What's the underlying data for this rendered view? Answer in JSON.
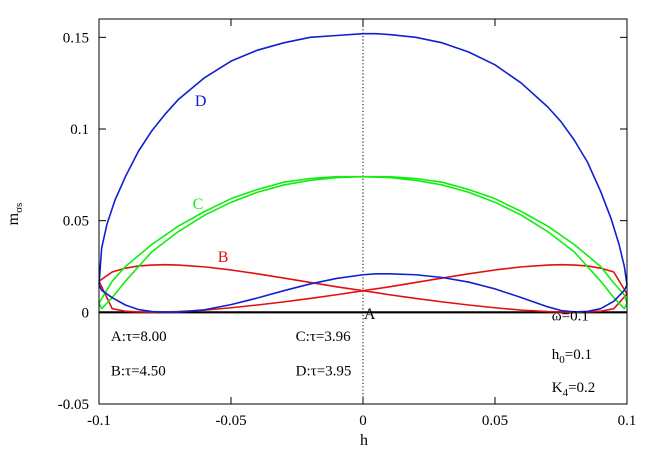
{
  "chart_data": {
    "type": "line",
    "xlabel": "h",
    "ylabel": "m",
    "ylabel_sub": "σs",
    "xlim": [
      -0.1,
      0.1
    ],
    "ylim": [
      -0.05,
      0.16
    ],
    "x_ticks": [
      -0.1,
      -0.05,
      0,
      0.05,
      0.1
    ],
    "x_tick_labels": [
      "-0.1",
      "-0.05",
      "0",
      "0.05",
      "0.1"
    ],
    "y_ticks": [
      -0.05,
      0,
      0.05,
      0.1,
      0.15
    ],
    "y_tick_labels": [
      "-0.05",
      "0",
      "0.05",
      "0.1",
      "0.15"
    ],
    "reference_line": {
      "x": 0,
      "style": "dotted"
    },
    "grid": false,
    "colors": {
      "A": "#000000",
      "B": "#e01010",
      "C": "#10ee10",
      "D": "#1020d0"
    },
    "series": [
      {
        "name": "A",
        "label": "A:τ=8.00",
        "color": "#000000",
        "x": [
          -0.1,
          -0.05,
          0,
          0.05,
          0.1
        ],
        "y": [
          0,
          0,
          0,
          0,
          0
        ]
      },
      {
        "name": "B",
        "label": "B:τ=4.50",
        "color": "#e01010",
        "x": [
          -0.1,
          -0.095,
          -0.09,
          -0.085,
          -0.08,
          -0.075,
          -0.07,
          -0.06,
          -0.05,
          -0.04,
          -0.03,
          -0.02,
          -0.01,
          0,
          0.01,
          0.02,
          0.03,
          0.04,
          0.05,
          0.06,
          0.07,
          0.075,
          0.08,
          0.085,
          0.09,
          0.095,
          0.1,
          0.095,
          0.09,
          0.085,
          0.08,
          0.075,
          0.07,
          0.06,
          0.05,
          0.04,
          0.03,
          0.02,
          0.01,
          0,
          -0.01,
          -0.02,
          -0.03,
          -0.04,
          -0.05,
          -0.06,
          -0.07,
          -0.075,
          -0.08,
          -0.085,
          -0.09,
          -0.095,
          -0.1
        ],
        "y": [
          0.017,
          0.022,
          0.0241,
          0.0253,
          0.0258,
          0.026,
          0.0258,
          0.0248,
          0.0231,
          0.021,
          0.0187,
          0.0163,
          0.0139,
          0.0118,
          0.0096,
          0.0076,
          0.0057,
          0.004,
          0.0025,
          0.0012,
          0.0004,
          0.0002,
          0.0001,
          0.0002,
          0.0006,
          0.002,
          0.01,
          0.022,
          0.0241,
          0.0253,
          0.0258,
          0.026,
          0.0258,
          0.0248,
          0.0231,
          0.021,
          0.0187,
          0.0163,
          0.0139,
          0.0118,
          0.0096,
          0.0076,
          0.0057,
          0.004,
          0.0025,
          0.0012,
          0.0004,
          0.0002,
          0.0001,
          0.0002,
          0.0006,
          0.002,
          0.017
        ]
      },
      {
        "name": "C",
        "label": "C:τ=3.96",
        "color": "#10ee10",
        "x": [
          -0.1,
          -0.095,
          -0.09,
          -0.08,
          -0.07,
          -0.06,
          -0.05,
          -0.04,
          -0.03,
          -0.02,
          -0.01,
          0,
          0.01,
          0.02,
          0.03,
          0.04,
          0.05,
          0.06,
          0.07,
          0.08,
          0.09,
          0.095,
          0.099,
          0.1,
          0.099,
          0.095,
          0.09,
          0.08,
          0.07,
          0.06,
          0.05,
          0.04,
          0.03,
          0.02,
          0.01,
          0,
          -0.01,
          -0.02,
          -0.03,
          -0.04,
          -0.05,
          -0.06,
          -0.07,
          -0.08,
          -0.09,
          -0.095,
          -0.099,
          -0.1
        ],
        "y": [
          0.005,
          0.017,
          0.025,
          0.037,
          0.047,
          0.055,
          0.062,
          0.067,
          0.071,
          0.073,
          0.074,
          0.074,
          0.0735,
          0.072,
          0.0695,
          0.0655,
          0.06,
          0.053,
          0.044,
          0.033,
          0.017,
          0.008,
          0.002,
          0.005,
          0.0095,
          0.016,
          0.025,
          0.037,
          0.047,
          0.055,
          0.062,
          0.067,
          0.071,
          0.073,
          0.074,
          0.074,
          0.0735,
          0.072,
          0.0695,
          0.0655,
          0.06,
          0.053,
          0.044,
          0.033,
          0.017,
          0.008,
          0.002,
          0.005
        ]
      },
      {
        "name": "D",
        "label": "D:τ=3.95",
        "color": "#1020d0",
        "x": [
          -0.1,
          -0.099,
          -0.097,
          -0.094,
          -0.09,
          -0.085,
          -0.08,
          -0.075,
          -0.07,
          -0.06,
          -0.05,
          -0.04,
          -0.03,
          -0.02,
          -0.01,
          0,
          0.005,
          0.01,
          0.02,
          0.03,
          0.04,
          0.05,
          0.06,
          0.07,
          0.075,
          0.08,
          0.085,
          0.09,
          0.094,
          0.097,
          0.099,
          0.1,
          0.099,
          0.095,
          0.09,
          0.085,
          0.08,
          0.075,
          0.07,
          0.06,
          0.05,
          0.04,
          0.03,
          0.02,
          0.01,
          0.005,
          0,
          -0.01,
          -0.02,
          -0.03,
          -0.04,
          -0.05,
          -0.06,
          -0.07,
          -0.075,
          -0.08,
          -0.085,
          -0.09,
          -0.095,
          -0.099,
          -0.1
        ],
        "y": [
          0.015,
          0.035,
          0.048,
          0.061,
          0.074,
          0.088,
          0.099,
          0.108,
          0.116,
          0.128,
          0.137,
          0.143,
          0.147,
          0.15,
          0.151,
          0.152,
          0.152,
          0.1515,
          0.15,
          0.147,
          0.142,
          0.135,
          0.125,
          0.112,
          0.104,
          0.094,
          0.082,
          0.066,
          0.051,
          0.037,
          0.025,
          0.015,
          0.012,
          0.006,
          0.002,
          0.0005,
          0.0002,
          0.001,
          0.003,
          0.008,
          0.0128,
          0.0165,
          0.019,
          0.0205,
          0.021,
          0.021,
          0.0205,
          0.0185,
          0.0155,
          0.0118,
          0.0078,
          0.0042,
          0.0014,
          0.0001,
          0.0001,
          0.0004,
          0.0015,
          0.004,
          0.008,
          0.012,
          0.015
        ]
      }
    ],
    "curve_labels": [
      {
        "text": "A",
        "x": 0.0025,
        "y": -0.0035,
        "color": "#000000"
      },
      {
        "text": "B",
        "x": -0.053,
        "y": 0.0275,
        "color": "#e01010"
      },
      {
        "text": "C",
        "x": -0.0625,
        "y": 0.0565,
        "color": "#10ee10"
      },
      {
        "text": "D",
        "x": -0.0615,
        "y": 0.1125,
        "color": "#1020d0"
      }
    ],
    "legend_entries": [
      {
        "text": "A:τ=8.00",
        "color": "#000000",
        "x": -0.0955,
        "y": -0.0155
      },
      {
        "text": "C:τ=3.96",
        "color": "#10ee10",
        "x": -0.0255,
        "y": -0.0155
      },
      {
        "text": "B:τ=4.50",
        "color": "#e01010",
        "x": -0.0955,
        "y": -0.0345
      },
      {
        "text": "D:τ=3.95",
        "color": "#1020d0",
        "x": -0.0255,
        "y": -0.0345
      }
    ],
    "parameters": [
      {
        "text": "ω=0.1",
        "x": 0.0715,
        "y": -0.0045
      },
      {
        "main": "h",
        "sub": "0",
        "rest": "=0.1",
        "x": 0.0715,
        "y": -0.0255
      },
      {
        "main": "K",
        "sub": "4",
        "rest": "=0.2",
        "x": 0.0715,
        "y": -0.0435
      }
    ]
  }
}
